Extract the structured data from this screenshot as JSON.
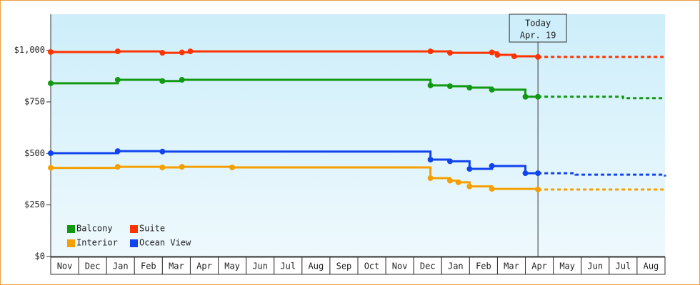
{
  "chart_data": {
    "type": "step-line",
    "ylim": [
      0,
      1175
    ],
    "yticks": [
      {
        "value": 0,
        "label": "$0"
      },
      {
        "value": 250,
        "label": "$250"
      },
      {
        "value": 500,
        "label": "$500"
      },
      {
        "value": 750,
        "label": "$750"
      },
      {
        "value": 1000,
        "label": "$1,000"
      }
    ],
    "xlim": [
      0,
      22
    ],
    "xticks": [
      {
        "value": 0,
        "label": "Nov"
      },
      {
        "value": 1,
        "label": "Dec"
      },
      {
        "value": 2,
        "label": "Jan"
      },
      {
        "value": 3,
        "label": "Feb"
      },
      {
        "value": 4,
        "label": "Mar"
      },
      {
        "value": 5,
        "label": "Apr"
      },
      {
        "value": 6,
        "label": "May"
      },
      {
        "value": 7,
        "label": "Jun"
      },
      {
        "value": 8,
        "label": "Jul"
      },
      {
        "value": 9,
        "label": "Aug"
      },
      {
        "value": 10,
        "label": "Sep"
      },
      {
        "value": 11,
        "label": "Oct"
      },
      {
        "value": 12,
        "label": "Nov"
      },
      {
        "value": 13,
        "label": "Dec"
      },
      {
        "value": 14,
        "label": "Jan"
      },
      {
        "value": 15,
        "label": "Feb"
      },
      {
        "value": 16,
        "label": "Mar"
      },
      {
        "value": 17,
        "label": "Apr"
      },
      {
        "value": 18,
        "label": "May"
      },
      {
        "value": 19,
        "label": "Jun"
      },
      {
        "value": 20,
        "label": "Jul"
      },
      {
        "value": 21,
        "label": "Aug"
      }
    ],
    "annotation": {
      "x": 17.45,
      "lines": [
        "Today",
        "Apr. 19"
      ]
    },
    "series": [
      {
        "name": "Balcony",
        "color": "#119911",
        "x": [
          0,
          2.4,
          4.0,
          4.7,
          13.6,
          14.3,
          15.0,
          15.8,
          17.0,
          17.45
        ],
        "values": [
          840,
          857,
          851,
          857,
          830,
          826,
          819,
          809,
          775,
          775
        ],
        "forecast": {
          "x": [
            17.45,
            20.5,
            22
          ],
          "values": [
            775,
            768,
            768
          ]
        }
      },
      {
        "name": "Suite",
        "color": "#ff3300",
        "x": [
          0,
          2.4,
          4.0,
          4.7,
          5.0,
          13.6,
          14.3,
          15.8,
          16.0,
          16.6,
          17.45
        ],
        "values": [
          992,
          995,
          988,
          990,
          995,
          995,
          988,
          990,
          978,
          971,
          968
        ],
        "forecast": {
          "x": [
            17.45,
            22
          ],
          "values": [
            968,
            965
          ]
        }
      },
      {
        "name": "Interior",
        "color": "#f5a000",
        "x": [
          0,
          2.4,
          4.0,
          4.7,
          6.5,
          13.6,
          14.3,
          14.6,
          15.0,
          15.8,
          17.45
        ],
        "values": [
          430,
          435,
          432,
          435,
          432,
          380,
          368,
          360,
          340,
          328,
          325
        ],
        "forecast": {
          "x": [
            17.45,
            22
          ],
          "values": [
            325,
            325
          ]
        }
      },
      {
        "name": "Ocean View",
        "color": "#1144ee",
        "x": [
          0,
          2.4,
          4.0,
          13.6,
          14.3,
          15.0,
          15.8,
          17.0,
          17.45
        ],
        "values": [
          501,
          511,
          509,
          470,
          462,
          425,
          439,
          404,
          404
        ],
        "forecast": {
          "x": [
            17.45,
            18.8,
            22
          ],
          "values": [
            404,
            397,
            388
          ]
        }
      }
    ]
  }
}
